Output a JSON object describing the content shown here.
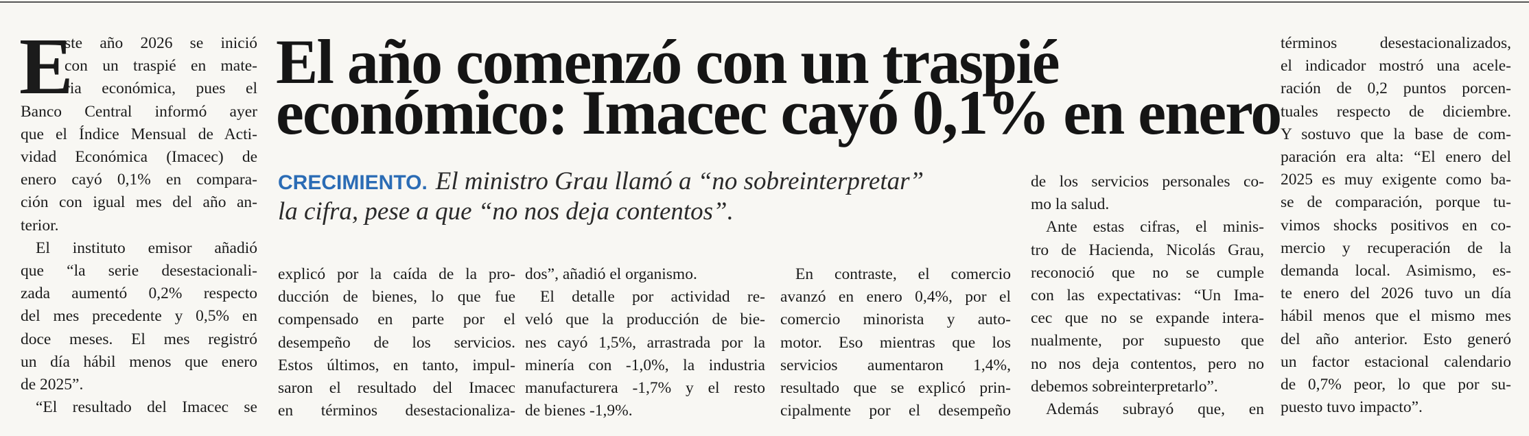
{
  "headline": [
    "El año comenzó con un traspié",
    "económico: Imacec cayó 0,1% en enero"
  ],
  "lead": {
    "kicker": "CRECIMIENTO.",
    "lines": [
      "El ministro Grau llamó a “no sobreinterpretar”",
      "la cifra, pese a que “no nos deja contentos”."
    ]
  },
  "drop_cap": "E",
  "columns": [
    {
      "lines": [
        "ste año 2026 se inició",
        "con un traspié en mate-",
        "ria económica, pues el",
        "Banco Central informó ayer",
        "que el Índice Mensual de Acti-",
        "vidad Económica (Imacec) de",
        "enero cayó 0,1% en compara-",
        "ción con igual mes del año an-",
        "terior.",
        "El instituto emisor añadió",
        "que “la serie desestacionali-",
        "zada aumentó 0,2% respecto",
        "del mes precedente y 0,5% en",
        "doce meses. El mes registró",
        "un día hábil menos que enero",
        "de 2025”.",
        "“El resultado del Imacec se"
      ]
    },
    {
      "lines": [
        "explicó por la caída de la pro-",
        "ducción de bienes, lo que fue",
        "compensado en parte por el",
        "desempeño de los servicios.",
        "Estos últimos, en tanto, impul-",
        "saron el resultado del Imacec",
        "en términos desestacionaliza-"
      ]
    },
    {
      "lines": [
        "dos”, añadió el organismo.",
        "El detalle por actividad re-",
        "veló que la producción de bie-",
        "nes cayó 1,5%, arrastrada por la",
        "minería con -1,0%, la industria",
        "manufacturera -1,7% y el resto",
        "de bienes -1,9%."
      ]
    },
    {
      "lines": [
        "En contraste, el comercio",
        "avanzó en enero 0,4%, por el",
        "comercio minorista y auto-",
        "motor. Eso mientras que los",
        "servicios aumentaron 1,4%,",
        "resultado que se explicó prin-",
        "cipalmente por el desempeño"
      ]
    },
    {
      "lines": [
        "de los servicios personales co-",
        "mo la salud.",
        "Ante estas cifras, el minis-",
        "tro de Hacienda, Nicolás Grau,",
        "reconoció que no se cumple",
        "con las expectativas: “Un Ima-",
        "cec que no se expande intera-",
        "nualmente, por supuesto que",
        "no nos deja contentos, pero no",
        "debemos sobreinterpretarlo”.",
        "Además subrayó que, en"
      ]
    },
    {
      "lines": [
        "términos desestacionalizados,",
        "el indicador mostró una acele-",
        "ración de 0,2 puntos porcen-",
        "tuales respecto de diciembre.",
        "Y sostuvo que la base de com-",
        "paración era alta: “El enero del",
        "2025 es muy exigente como ba-",
        "se de comparación, porque tu-",
        "vimos shocks positivos en co-",
        "mercio y recuperación de la",
        "demanda local. Asimismo, es-",
        "te enero del 2026 tuvo un día",
        "hábil menos que el mismo mes",
        "del año anterior. Esto generó",
        "un factor estacional calendario",
        "de 0,7% peor, lo que por su-",
        "puesto tuvo impacto”."
      ]
    }
  ]
}
